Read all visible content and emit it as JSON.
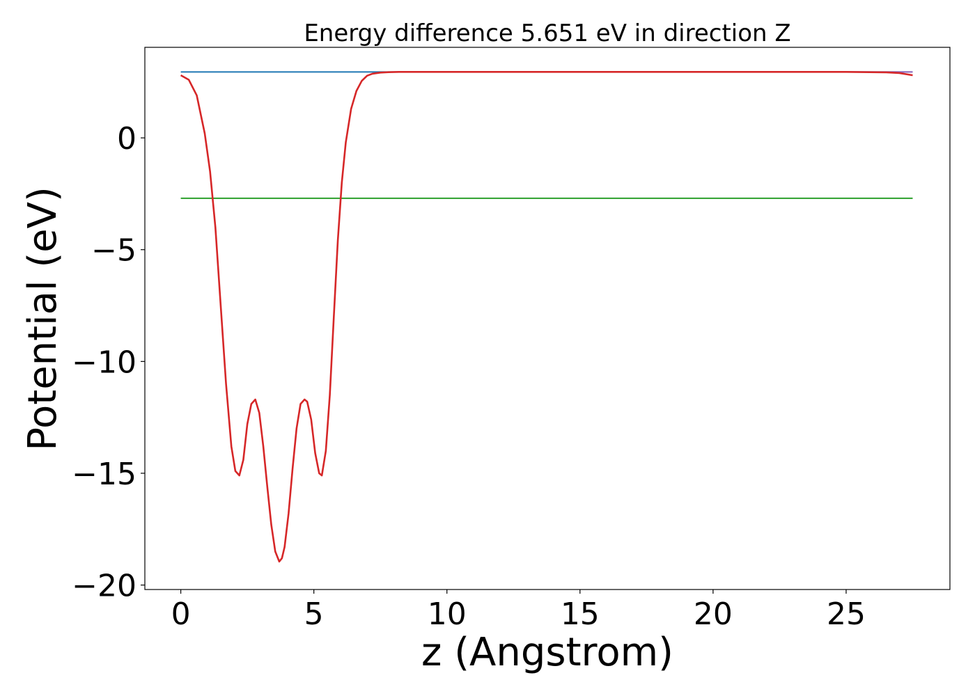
{
  "chart_data": {
    "type": "line",
    "title": "Energy difference 5.651 eV in direction Z",
    "xlabel": "z (Angstrom)",
    "ylabel": "Potential (eV)",
    "xlim": [
      -1.35,
      28.9
    ],
    "ylim": [
      -20.2,
      4.05
    ],
    "xticks": [
      0,
      5,
      10,
      15,
      20,
      25
    ],
    "yticks": [
      0,
      -5,
      -10,
      -15,
      -20
    ],
    "xtick_labels": [
      "0",
      "5",
      "10",
      "15",
      "20",
      "25"
    ],
    "ytick_labels": [
      "0",
      "−5",
      "−10",
      "−15",
      "−20"
    ],
    "grid": false,
    "legend": "none",
    "series": [
      {
        "color": "#1f77b4",
        "x": [
          0,
          27.5
        ],
        "y": [
          2.95,
          2.95
        ]
      },
      {
        "color": "#2ca02c",
        "x": [
          0,
          27.5
        ],
        "y": [
          -2.7,
          -2.7
        ]
      },
      {
        "color": "#9467bd",
        "x": [
          8.5,
          27.5
        ],
        "y": [
          2.95,
          2.95
        ]
      },
      {
        "color": "#d62728",
        "x": [
          0,
          0.3,
          0.6,
          0.9,
          1.1,
          1.3,
          1.5,
          1.7,
          1.9,
          2.05,
          2.2,
          2.35,
          2.5,
          2.65,
          2.8,
          2.95,
          3.1,
          3.25,
          3.4,
          3.55,
          3.7,
          3.8,
          3.9,
          4.05,
          4.2,
          4.35,
          4.5,
          4.65,
          4.75,
          4.9,
          5.05,
          5.2,
          5.3,
          5.45,
          5.6,
          5.75,
          5.9,
          6.05,
          6.2,
          6.4,
          6.6,
          6.8,
          7.0,
          7.2,
          7.5,
          7.8,
          8.2,
          8.6,
          9.0,
          10,
          12,
          15,
          20,
          25,
          26.5,
          27,
          27.5
        ],
        "y": [
          2.8,
          2.6,
          1.9,
          0.2,
          -1.5,
          -4.0,
          -7.5,
          -11.0,
          -13.8,
          -14.9,
          -15.1,
          -14.4,
          -12.8,
          -11.9,
          -11.7,
          -12.3,
          -13.8,
          -15.6,
          -17.3,
          -18.5,
          -18.95,
          -18.8,
          -18.3,
          -16.8,
          -14.8,
          -13.0,
          -11.9,
          -11.7,
          -11.8,
          -12.6,
          -14.1,
          -15.0,
          -15.1,
          -14.0,
          -11.5,
          -8.0,
          -4.6,
          -2.0,
          -0.2,
          1.3,
          2.1,
          2.55,
          2.78,
          2.87,
          2.92,
          2.94,
          2.95,
          2.95,
          2.95,
          2.95,
          2.95,
          2.95,
          2.95,
          2.95,
          2.93,
          2.9,
          2.8
        ]
      }
    ]
  }
}
